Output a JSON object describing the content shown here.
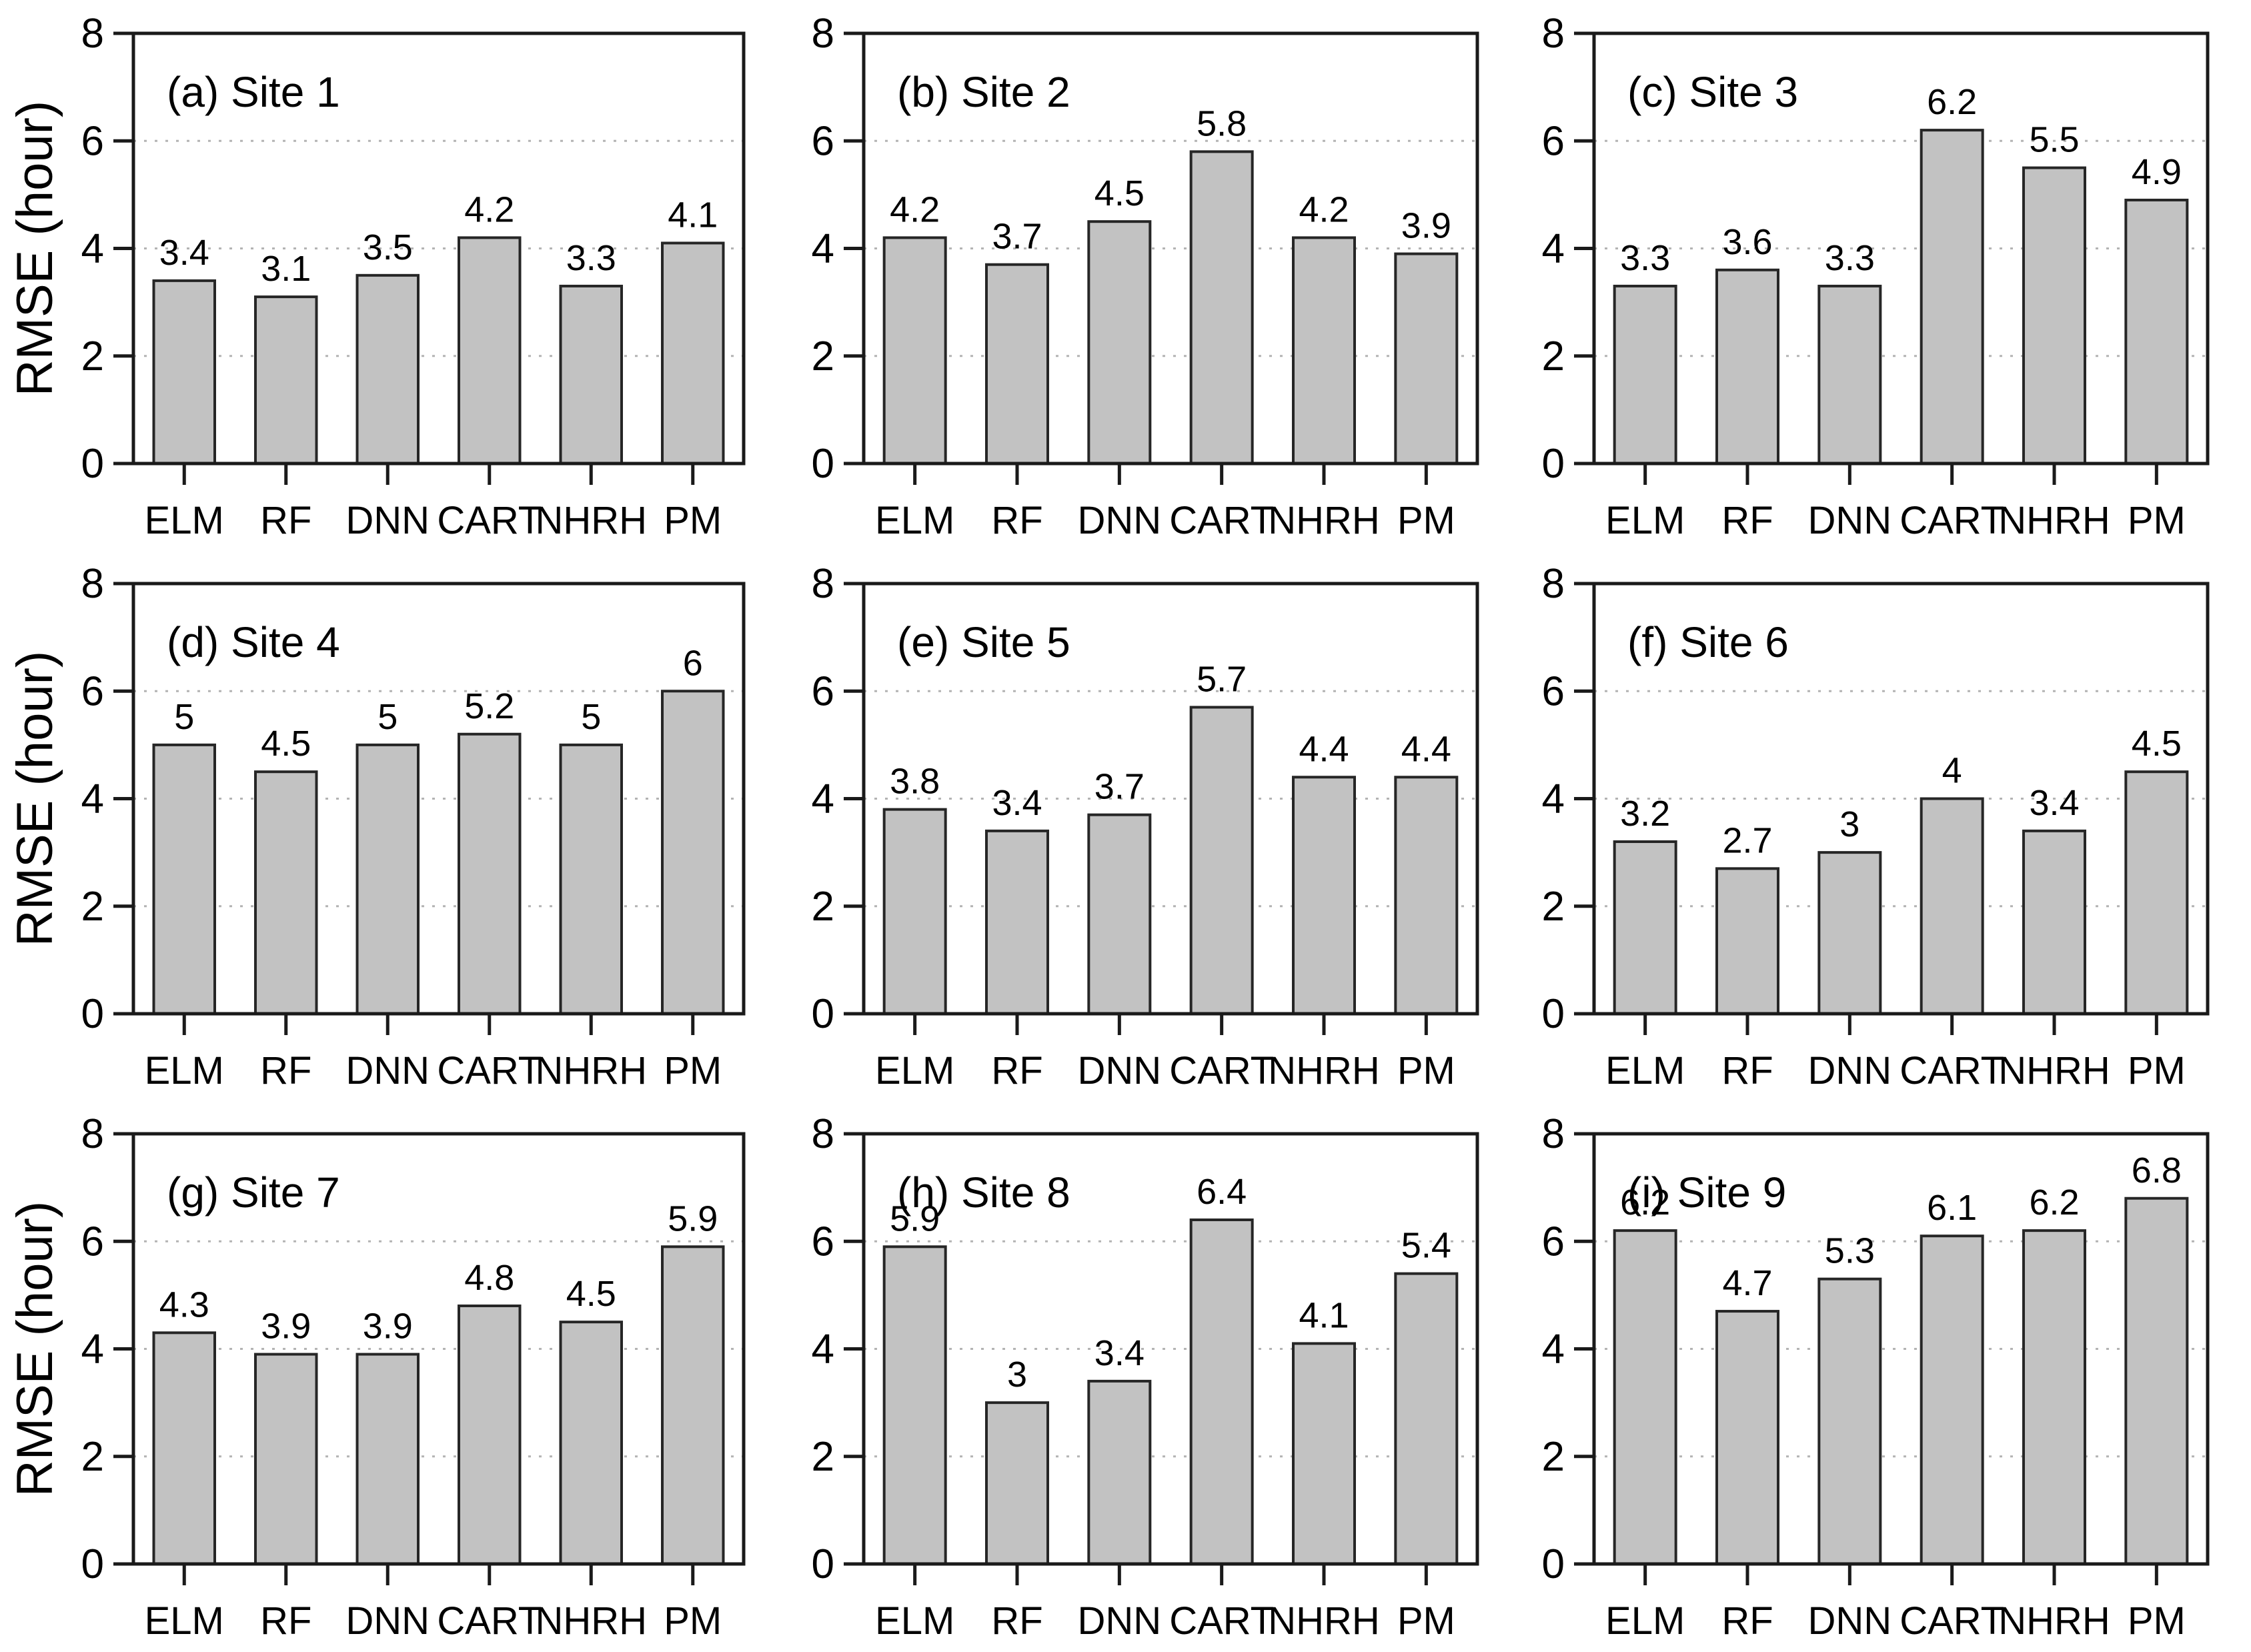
{
  "figure": {
    "background": "#ffffff",
    "ylabel": "RMSE (hour)",
    "categories": [
      "ELM",
      "RF",
      "DNN",
      "CART",
      "NHRH",
      "PM"
    ],
    "colors": {
      "bar_fill": "#c2c2c2",
      "bar_stroke": "#262626",
      "axis": "#1a1a1a",
      "grid": "#b3b3b3",
      "text": "#000000"
    }
  },
  "chart_data": [
    {
      "type": "bar",
      "panel_letter": "(a)",
      "site": "Site 1",
      "title": "(a) Site 1",
      "categories": [
        "ELM",
        "RF",
        "DNN",
        "CART",
        "NHRH",
        "PM"
      ],
      "values": [
        3.4,
        3.1,
        3.5,
        4.2,
        3.3,
        4.1
      ],
      "ylabel": "RMSE (hour)",
      "ylim": [
        0,
        8
      ],
      "yticks": [
        0,
        2,
        4,
        6,
        8
      ],
      "gridlines": [
        2,
        4,
        6
      ],
      "grid_style": "dotted",
      "show_ylabel": true
    },
    {
      "type": "bar",
      "panel_letter": "(b)",
      "site": "Site 2",
      "title": "(b) Site 2",
      "categories": [
        "ELM",
        "RF",
        "DNN",
        "CART",
        "NHRH",
        "PM"
      ],
      "values": [
        4.2,
        3.7,
        4.5,
        5.8,
        4.2,
        3.9
      ],
      "ylabel": "RMSE (hour)",
      "ylim": [
        0,
        8
      ],
      "yticks": [
        0,
        2,
        4,
        6,
        8
      ],
      "gridlines": [
        2,
        4,
        6
      ],
      "grid_style": "dotted",
      "show_ylabel": false
    },
    {
      "type": "bar",
      "panel_letter": "(c)",
      "site": "Site 3",
      "title": "(c) Site 3",
      "categories": [
        "ELM",
        "RF",
        "DNN",
        "CART",
        "NHRH",
        "PM"
      ],
      "values": [
        3.3,
        3.6,
        3.3,
        6.2,
        5.5,
        4.9
      ],
      "ylabel": "RMSE (hour)",
      "ylim": [
        0,
        8
      ],
      "yticks": [
        0,
        2,
        4,
        6,
        8
      ],
      "gridlines": [
        2,
        4,
        6
      ],
      "grid_style": "dotted",
      "show_ylabel": false
    },
    {
      "type": "bar",
      "panel_letter": "(d)",
      "site": "Site 4",
      "title": "(d) Site 4",
      "categories": [
        "ELM",
        "RF",
        "DNN",
        "CART",
        "NHRH",
        "PM"
      ],
      "values": [
        5,
        4.5,
        5,
        5.2,
        5,
        6
      ],
      "ylabel": "RMSE (hour)",
      "ylim": [
        0,
        8
      ],
      "yticks": [
        0,
        2,
        4,
        6,
        8
      ],
      "gridlines": [
        2,
        4,
        6
      ],
      "grid_style": "dotted",
      "show_ylabel": true
    },
    {
      "type": "bar",
      "panel_letter": "(e)",
      "site": "Site 5",
      "title": "(e) Site 5",
      "categories": [
        "ELM",
        "RF",
        "DNN",
        "CART",
        "NHRH",
        "PM"
      ],
      "values": [
        3.8,
        3.4,
        3.7,
        5.7,
        4.4,
        4.4
      ],
      "ylabel": "RMSE (hour)",
      "ylim": [
        0,
        8
      ],
      "yticks": [
        0,
        2,
        4,
        6,
        8
      ],
      "gridlines": [
        2,
        4,
        6
      ],
      "grid_style": "dotted",
      "show_ylabel": false
    },
    {
      "type": "bar",
      "panel_letter": "(f)",
      "site": "Site 6",
      "title": "(f) Site 6",
      "categories": [
        "ELM",
        "RF",
        "DNN",
        "CART",
        "NHRH",
        "PM"
      ],
      "values": [
        3.2,
        2.7,
        3,
        4,
        3.4,
        4.5
      ],
      "ylabel": "RMSE (hour)",
      "ylim": [
        0,
        8
      ],
      "yticks": [
        0,
        2,
        4,
        6,
        8
      ],
      "gridlines": [
        2,
        4,
        6
      ],
      "grid_style": "dotted",
      "show_ylabel": false
    },
    {
      "type": "bar",
      "panel_letter": "(g)",
      "site": "Site 7",
      "title": "(g) Site 7",
      "categories": [
        "ELM",
        "RF",
        "DNN",
        "CART",
        "NHRH",
        "PM"
      ],
      "values": [
        4.3,
        3.9,
        3.9,
        4.8,
        4.5,
        5.9
      ],
      "ylabel": "RMSE (hour)",
      "ylim": [
        0,
        8
      ],
      "yticks": [
        0,
        2,
        4,
        6,
        8
      ],
      "gridlines": [
        2,
        4,
        6
      ],
      "grid_style": "dotted",
      "show_ylabel": true
    },
    {
      "type": "bar",
      "panel_letter": "(h)",
      "site": "Site 8",
      "title": "(h) Site 8",
      "categories": [
        "ELM",
        "RF",
        "DNN",
        "CART",
        "NHRH",
        "PM"
      ],
      "values": [
        5.9,
        3,
        3.4,
        6.4,
        4.1,
        5.4
      ],
      "ylabel": "RMSE (hour)",
      "ylim": [
        0,
        8
      ],
      "yticks": [
        0,
        2,
        4,
        6,
        8
      ],
      "gridlines": [
        2,
        4,
        6
      ],
      "grid_style": "dotted",
      "show_ylabel": false
    },
    {
      "type": "bar",
      "panel_letter": "(i)",
      "site": "Site 9",
      "title": "(i) Site 9",
      "categories": [
        "ELM",
        "RF",
        "DNN",
        "CART",
        "NHRH",
        "PM"
      ],
      "values": [
        6.2,
        4.7,
        5.3,
        6.1,
        6.2,
        6.8
      ],
      "ylabel": "RMSE (hour)",
      "ylim": [
        0,
        8
      ],
      "yticks": [
        0,
        2,
        4,
        6,
        8
      ],
      "gridlines": [
        2,
        4,
        6
      ],
      "grid_style": "dotted",
      "show_ylabel": false
    }
  ]
}
